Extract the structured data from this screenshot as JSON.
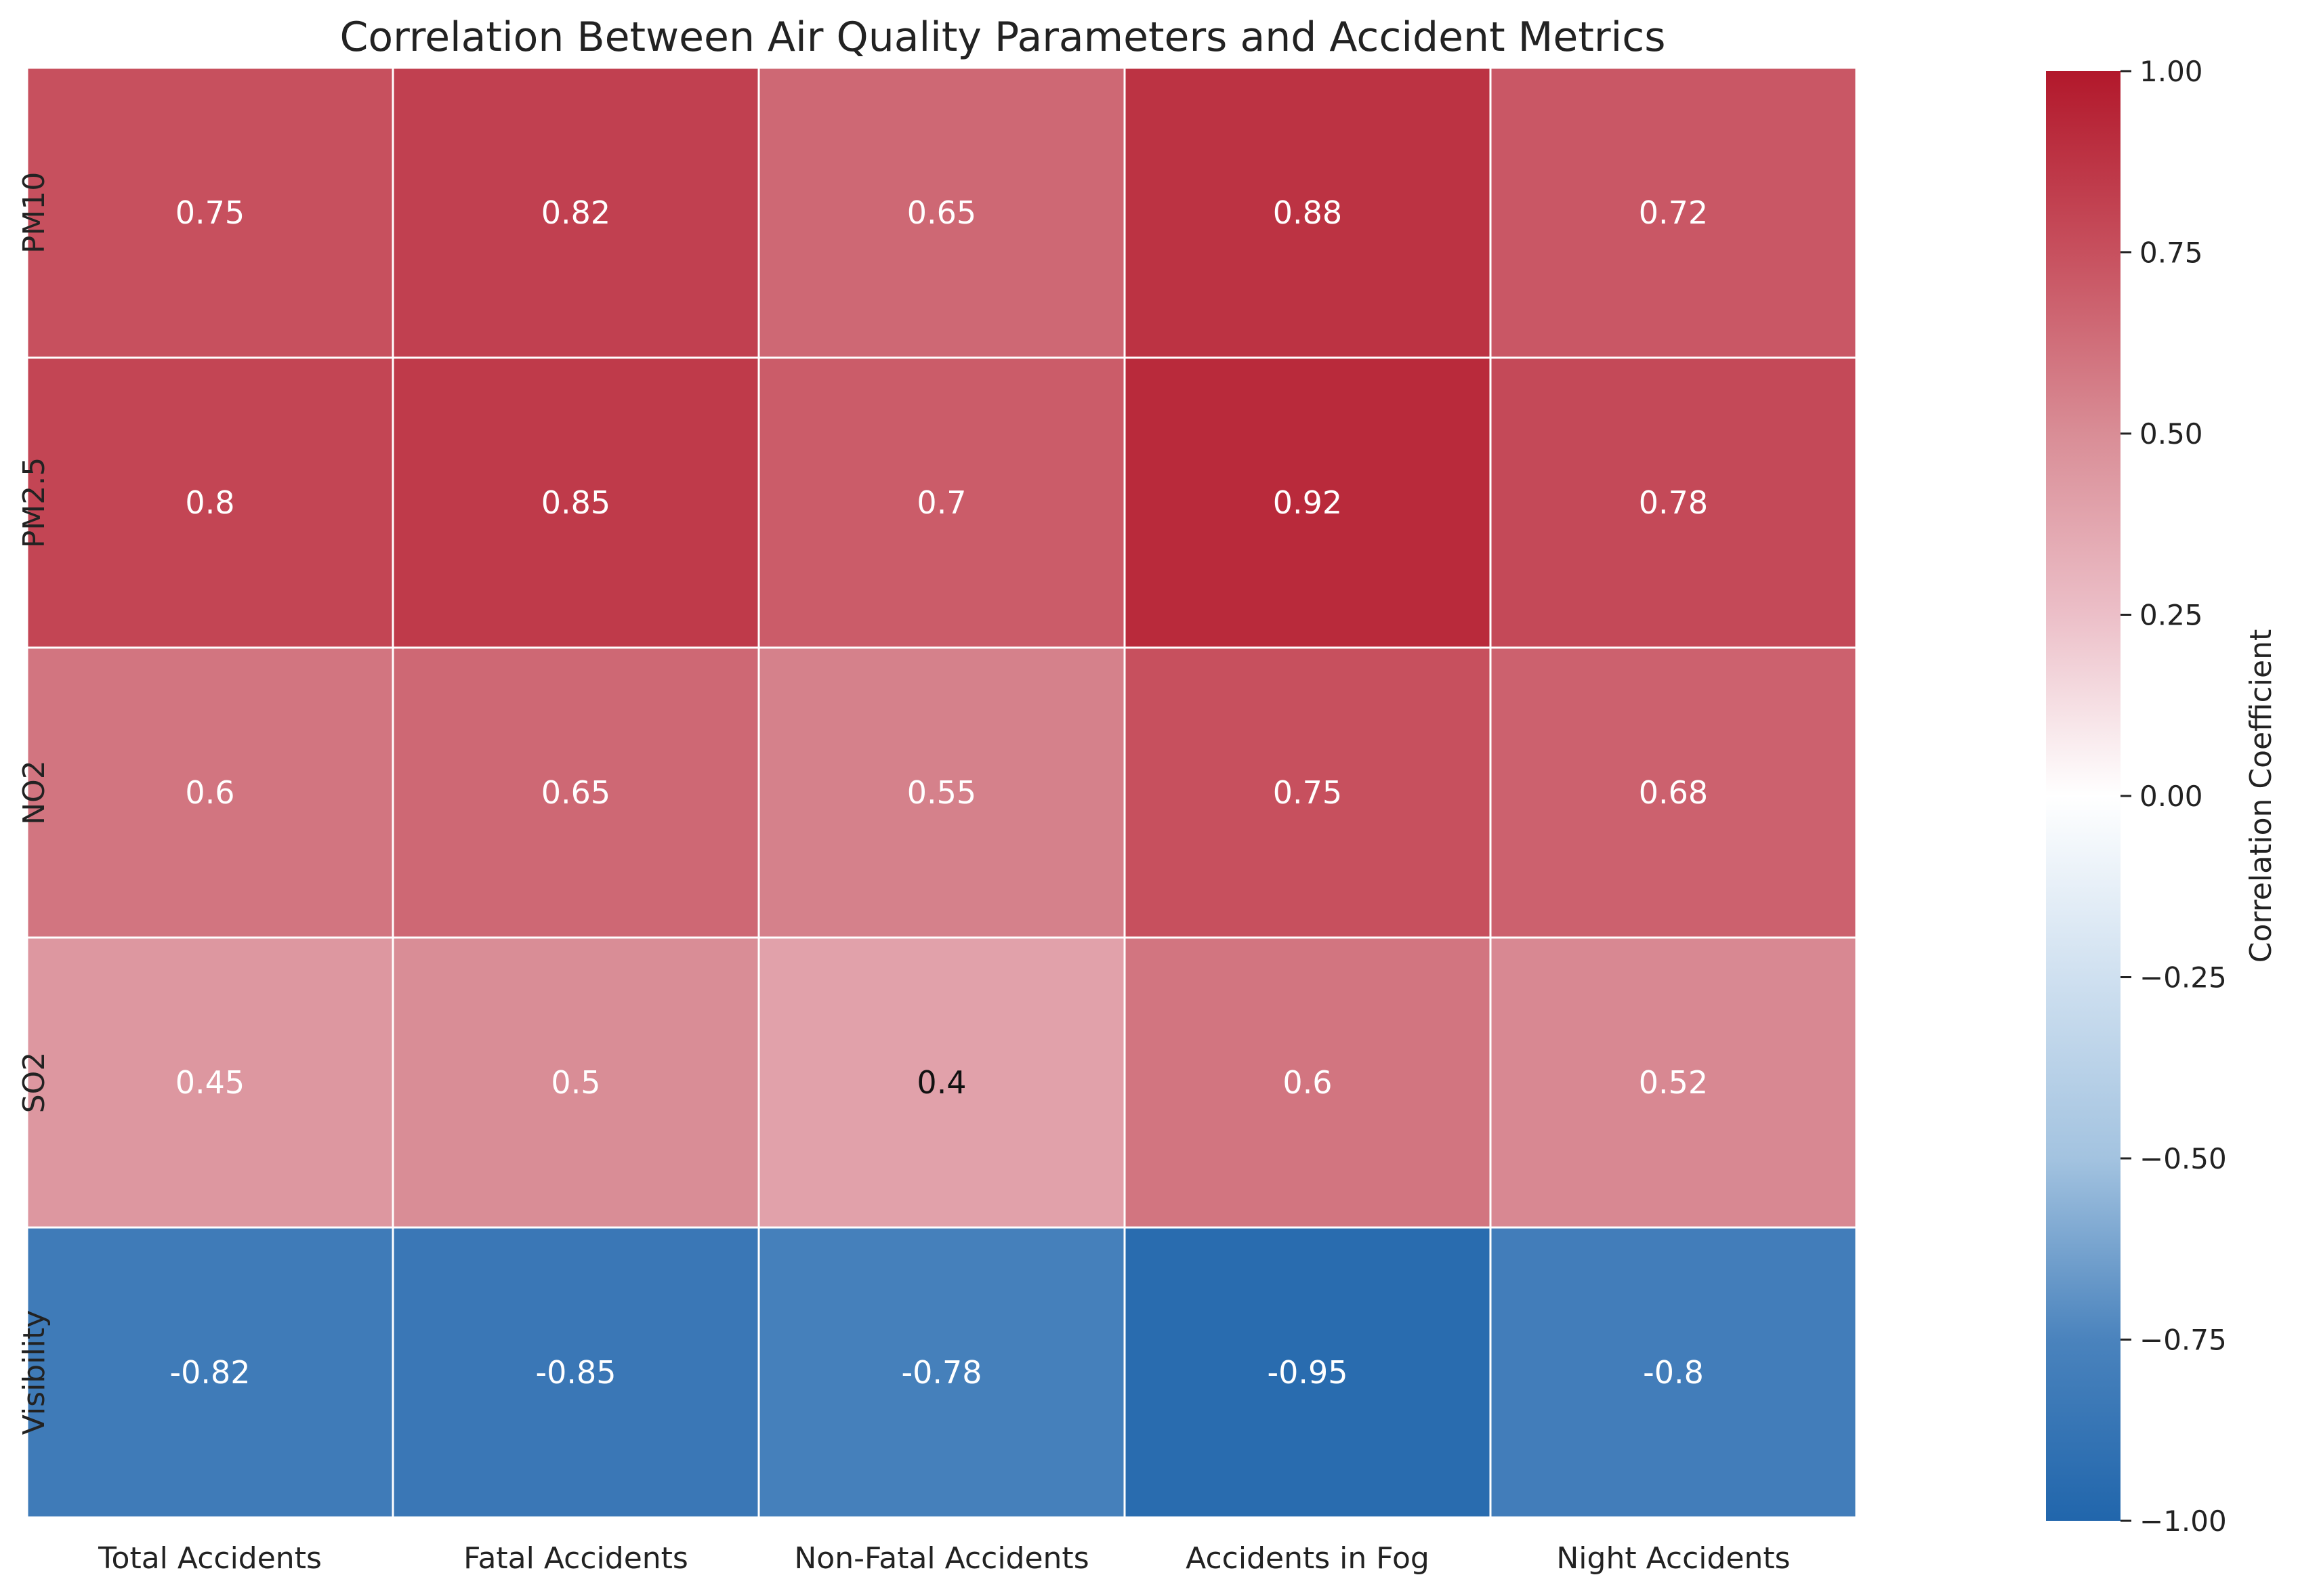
{
  "chart_data": {
    "type": "heatmap",
    "title": "Correlation Between Air Quality Parameters and Accident Metrics",
    "x_categories": [
      "Total Accidents",
      "Fatal Accidents",
      "Non-Fatal Accidents",
      "Accidents in Fog",
      "Night Accidents"
    ],
    "y_categories": [
      "PM10",
      "PM2.5",
      "NO2",
      "SO2",
      "Visibility"
    ],
    "values": [
      [
        0.75,
        0.82,
        0.65,
        0.88,
        0.72
      ],
      [
        0.8,
        0.85,
        0.7,
        0.92,
        0.78
      ],
      [
        0.6,
        0.65,
        0.55,
        0.75,
        0.68
      ],
      [
        0.45,
        0.5,
        0.4,
        0.6,
        0.52
      ],
      [
        -0.82,
        -0.85,
        -0.78,
        -0.95,
        -0.8
      ]
    ],
    "colorbar": {
      "label": "Correlation Coefficient",
      "min": -1.0,
      "max": 1.0,
      "ticks": [
        1.0,
        0.75,
        0.5,
        0.25,
        0.0,
        -0.25,
        -0.5,
        -0.75,
        -1.0
      ],
      "tick_labels": [
        "1.00",
        "0.75",
        "0.50",
        "0.25",
        "0.00",
        "−0.25",
        "−0.50",
        "−0.75",
        "−1.00"
      ],
      "colormap": "RdBu_r",
      "color_stops": [
        {
          "v": -1.0,
          "c": "#2166ac"
        },
        {
          "v": -0.75,
          "c": "#4a83bd"
        },
        {
          "v": -0.5,
          "c": "#a3c3e0"
        },
        {
          "v": -0.25,
          "c": "#cfe0f0"
        },
        {
          "v": 0.0,
          "c": "#ffffff"
        },
        {
          "v": 0.25,
          "c": "#ecbfc8"
        },
        {
          "v": 0.5,
          "c": "#d98d96"
        },
        {
          "v": 0.75,
          "c": "#c7505e"
        },
        {
          "v": 1.0,
          "c": "#b2182b"
        }
      ]
    },
    "grid": false,
    "cell_border_color": "#ffffff",
    "text_color_light": "#ffffff",
    "text_color_dark": "#111111"
  }
}
